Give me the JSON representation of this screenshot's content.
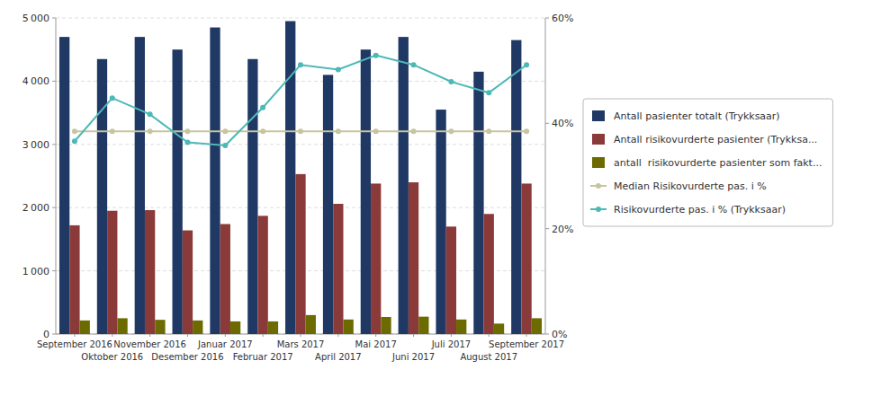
{
  "chart_data": {
    "type": "bar",
    "categories": [
      "September 2016",
      "Oktober 2016",
      "November 2016",
      "Desember 2016",
      "Januar 2017",
      "Februar 2017",
      "Mars 2017",
      "April 2017",
      "Mai 2017",
      "Juni 2017",
      "Juli 2017",
      "August 2017",
      "September 2017"
    ],
    "series": [
      {
        "name": "Antall pasienter totalt (Trykksaar)",
        "type": "bar",
        "color": "#1F3864",
        "values": [
          4700,
          4350,
          4700,
          4500,
          4850,
          4350,
          4950,
          4100,
          4500,
          4700,
          3550,
          4150,
          4650
        ]
      },
      {
        "name": "Antall risikovurderte pasienter (Trykksa...",
        "type": "bar",
        "color": "#8B3A3A",
        "values": [
          1720,
          1950,
          1960,
          1640,
          1740,
          1870,
          2530,
          2060,
          2380,
          2400,
          1700,
          1900,
          2380
        ]
      },
      {
        "name": "antall  risikovurderte pasienter som fakt...",
        "type": "bar",
        "color": "#6B6B00",
        "values": [
          215,
          250,
          225,
          215,
          200,
          200,
          300,
          230,
          270,
          275,
          230,
          165,
          250
        ]
      },
      {
        "name": "Median Risikovurderte pas. i %",
        "type": "line",
        "axis": "y2",
        "color": "#C8C4A0",
        "marker": "circle",
        "values": [
          38.5,
          38.5,
          38.5,
          38.5,
          38.5,
          38.5,
          38.5,
          38.5,
          38.5,
          38.5,
          38.5,
          38.5,
          38.5
        ]
      },
      {
        "name": "Risikovurderte pas. i % (Trykksaar)",
        "type": "line",
        "axis": "y2",
        "color": "#4DB8B8",
        "marker": "circle",
        "values": [
          36.6,
          44.8,
          41.7,
          36.4,
          35.8,
          43.0,
          51.1,
          50.2,
          52.9,
          51.1,
          47.9,
          45.8,
          51.1
        ]
      }
    ],
    "ylim": [
      0,
      5000
    ],
    "yticks": [
      0,
      {
        "value": 1000,
        "label": "1 000"
      },
      {
        "value": 2000,
        "label": "2 000"
      },
      {
        "value": 3000,
        "label": "3 000"
      },
      {
        "value": 4000,
        "label": "4 000"
      },
      {
        "value": 5000,
        "label": "5 000"
      }
    ],
    "y2lim": [
      0,
      60
    ],
    "y2ticks": [
      {
        "value": 0,
        "label": "0%"
      },
      {
        "value": 20,
        "label": "20%"
      },
      {
        "value": 40,
        "label": "40%"
      },
      {
        "value": 60,
        "label": "60%"
      }
    ],
    "grid": true,
    "legend": "right"
  }
}
